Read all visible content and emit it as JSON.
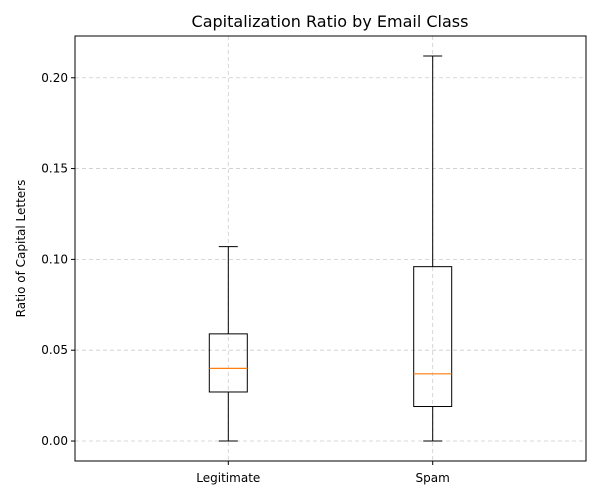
{
  "chart_data": {
    "type": "boxplot",
    "title": "Capitalization Ratio by Email Class",
    "xlabel": "",
    "ylabel": "Ratio of Capital Letters",
    "ylim": [
      -0.011,
      0.223
    ],
    "yticks": [
      0.0,
      0.05,
      0.1,
      0.15,
      0.2
    ],
    "ytick_labels": [
      "0.00",
      "0.05",
      "0.10",
      "0.15",
      "0.20"
    ],
    "grid": true,
    "categories": [
      "Legitimate",
      "Spam"
    ],
    "boxes": [
      {
        "category": "Legitimate",
        "whisker_low": 0.0,
        "q1": 0.027,
        "median": 0.04,
        "q3": 0.059,
        "whisker_high": 0.107
      },
      {
        "category": "Spam",
        "whisker_low": 0.0,
        "q1": 0.019,
        "median": 0.037,
        "q3": 0.096,
        "whisker_high": 0.212
      }
    ],
    "colors": {
      "box": "#000000",
      "median": "#ff7f0e",
      "grid": "#cccccc"
    }
  }
}
